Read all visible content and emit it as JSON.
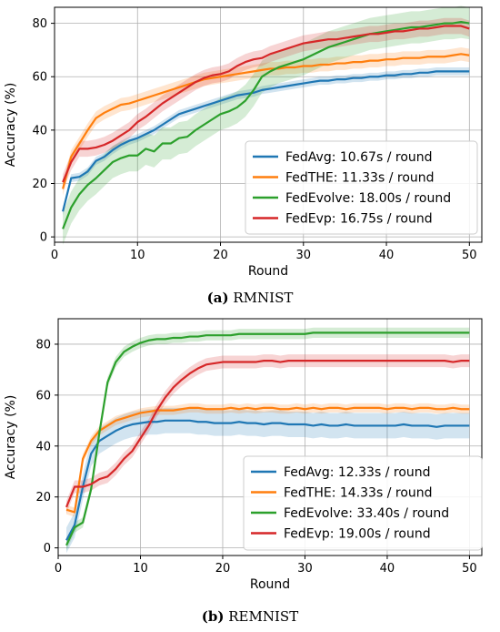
{
  "chart_data": [
    {
      "type": "line",
      "caption_letter": "(a)",
      "caption_text": "RMNIST",
      "xlabel": "Round",
      "ylabel": "Accuracy (%)",
      "xlim": [
        0,
        51.5
      ],
      "ylim": [
        -2,
        86
      ],
      "xticks": [
        0,
        10,
        20,
        30,
        40,
        50
      ],
      "yticks": [
        0,
        20,
        40,
        60,
        80
      ],
      "grid": true,
      "legend_position": "bottom-right",
      "x": [
        1,
        2,
        3,
        4,
        5,
        6,
        7,
        8,
        9,
        10,
        11,
        12,
        13,
        14,
        15,
        16,
        17,
        18,
        19,
        20,
        21,
        22,
        23,
        24,
        25,
        26,
        27,
        28,
        29,
        30,
        31,
        32,
        33,
        34,
        35,
        36,
        37,
        38,
        39,
        40,
        41,
        42,
        43,
        44,
        45,
        46,
        47,
        48,
        49,
        50
      ],
      "series": [
        {
          "name": "FedAvg: 10.67s / round",
          "color": "#1f77b4",
          "band": 1.5,
          "values": [
            9.5,
            22,
            22.5,
            24.5,
            28.5,
            30,
            32.5,
            34.5,
            36,
            37,
            38.5,
            40,
            42,
            44,
            46,
            47,
            48,
            49,
            50,
            51,
            52,
            53,
            53.5,
            54,
            55,
            55.5,
            56,
            56.5,
            57,
            57.5,
            58,
            58.5,
            58.5,
            59,
            59,
            59.5,
            59.5,
            60,
            60,
            60.5,
            60.5,
            61,
            61,
            61.5,
            61.5,
            62,
            62,
            62,
            62,
            62
          ]
        },
        {
          "name": "FedTHE: 11.33s / round",
          "color": "#ff7f0e",
          "band": 2.5,
          "values": [
            18,
            30,
            35,
            40,
            44.5,
            46.5,
            48,
            49.5,
            50,
            51,
            52,
            53,
            54,
            55,
            56,
            57,
            58,
            59,
            59.5,
            60,
            60.5,
            61,
            61.5,
            62,
            62.5,
            63,
            63,
            63.5,
            63.5,
            64,
            64,
            64.5,
            64.5,
            65,
            65,
            65.5,
            65.5,
            66,
            66,
            66.5,
            66.5,
            67,
            67,
            67,
            67.5,
            67.5,
            67.5,
            68,
            68.5,
            68
          ]
        },
        {
          "name": "FedEvolve: 18.00s / round",
          "color": "#2ca02c",
          "band": 6,
          "values": [
            3,
            11,
            16,
            19.5,
            22,
            25,
            28,
            29.5,
            30.5,
            30.5,
            33,
            32,
            35,
            35,
            37,
            37.5,
            40,
            42,
            44,
            46,
            47,
            48.5,
            51,
            55,
            60,
            62,
            63.5,
            64.5,
            65.5,
            66.5,
            68,
            69.5,
            71,
            72,
            73,
            74,
            75,
            76,
            76.5,
            77,
            77.5,
            78,
            78.5,
            78.5,
            79,
            79.5,
            80,
            80,
            80.5,
            80
          ]
        },
        {
          "name": "FedEvp: 16.75s / round",
          "color": "#d62728",
          "band": 3,
          "values": [
            20.5,
            28,
            33,
            33,
            33.5,
            34.5,
            36,
            38,
            40,
            43,
            45,
            47.5,
            50,
            52,
            54,
            56,
            58,
            59.5,
            60.5,
            61,
            62,
            64,
            65.5,
            66.5,
            67,
            68.5,
            69.5,
            70.5,
            71.5,
            72.5,
            73,
            73.5,
            74,
            74,
            74.5,
            75,
            75.5,
            76,
            76,
            76.5,
            77,
            77,
            77.5,
            78,
            78,
            78.5,
            79,
            79,
            79,
            78
          ]
        }
      ]
    },
    {
      "type": "line",
      "caption_letter": "(b)",
      "caption_text": "REMNIST",
      "xlabel": "Round",
      "ylabel": "Accuracy (%)",
      "xlim": [
        0,
        51.5
      ],
      "ylim": [
        -3,
        90
      ],
      "xticks": [
        0,
        10,
        20,
        30,
        40,
        50
      ],
      "yticks": [
        0,
        20,
        40,
        60,
        80
      ],
      "grid": true,
      "legend_position": "bottom-right",
      "x": [
        1,
        2,
        3,
        4,
        5,
        6,
        7,
        8,
        9,
        10,
        11,
        12,
        13,
        14,
        15,
        16,
        17,
        18,
        19,
        20,
        21,
        22,
        23,
        24,
        25,
        26,
        27,
        28,
        29,
        30,
        31,
        32,
        33,
        34,
        35,
        36,
        37,
        38,
        39,
        40,
        41,
        42,
        43,
        44,
        45,
        46,
        47,
        48,
        49,
        50
      ],
      "series": [
        {
          "name": "FedAvg: 12.33s / round",
          "color": "#1f77b4",
          "band": 5,
          "values": [
            3,
            9,
            24,
            37,
            42,
            44,
            46,
            47.5,
            48.5,
            49,
            49.5,
            49.5,
            50,
            50,
            50,
            50,
            49.5,
            49.5,
            49,
            49,
            49,
            49.5,
            49,
            49,
            48.5,
            49,
            49,
            48.5,
            48.5,
            48.5,
            48,
            48.5,
            48,
            48,
            48.5,
            48,
            48,
            48,
            48,
            48,
            48,
            48.5,
            48,
            48,
            48,
            47.5,
            48,
            48,
            48,
            48
          ]
        },
        {
          "name": "FedTHE: 14.33s / round",
          "color": "#ff7f0e",
          "band": 1.8,
          "values": [
            15,
            14,
            35,
            42,
            46,
            48,
            50,
            51,
            52,
            53,
            53.5,
            54,
            54,
            54,
            54.5,
            55,
            55,
            54.5,
            54.5,
            54.5,
            55,
            54.5,
            55,
            54.5,
            55,
            55,
            54.5,
            54.5,
            55,
            54.5,
            55,
            54.5,
            55,
            55,
            54.5,
            55,
            55,
            55,
            55,
            54.5,
            55,
            55,
            54.5,
            55,
            55,
            54.5,
            54.5,
            55,
            54.5,
            54.5
          ]
        },
        {
          "name": "FedEvolve: 33.40s / round",
          "color": "#2ca02c",
          "band": 2,
          "values": [
            1,
            8,
            10,
            23,
            45,
            65,
            73,
            77,
            79,
            80.5,
            81.5,
            82,
            82,
            82.5,
            82.5,
            83,
            83,
            83.5,
            83.5,
            83.5,
            83.5,
            84,
            84,
            84,
            84,
            84,
            84,
            84,
            84,
            84,
            84.5,
            84.5,
            84.5,
            84.5,
            84.5,
            84.5,
            84.5,
            84.5,
            84.5,
            84.5,
            84.5,
            84.5,
            84.5,
            84.5,
            84.5,
            84.5,
            84.5,
            84.5,
            84.5,
            84.5
          ]
        },
        {
          "name": "FedEvp: 19.00s / round",
          "color": "#d62728",
          "band": 2.5,
          "values": [
            16,
            24,
            24,
            25,
            27,
            28,
            31,
            35,
            38,
            43,
            48,
            54,
            59,
            63,
            66,
            68.5,
            70.5,
            72,
            72.5,
            73,
            73,
            73,
            73,
            73,
            73.5,
            73.5,
            73,
            73.5,
            73.5,
            73.5,
            73.5,
            73.5,
            73.5,
            73.5,
            73.5,
            73.5,
            73.5,
            73.5,
            73.5,
            73.5,
            73.5,
            73.5,
            73.5,
            73.5,
            73.5,
            73.5,
            73.5,
            73,
            73.5,
            73.5
          ]
        }
      ]
    }
  ]
}
